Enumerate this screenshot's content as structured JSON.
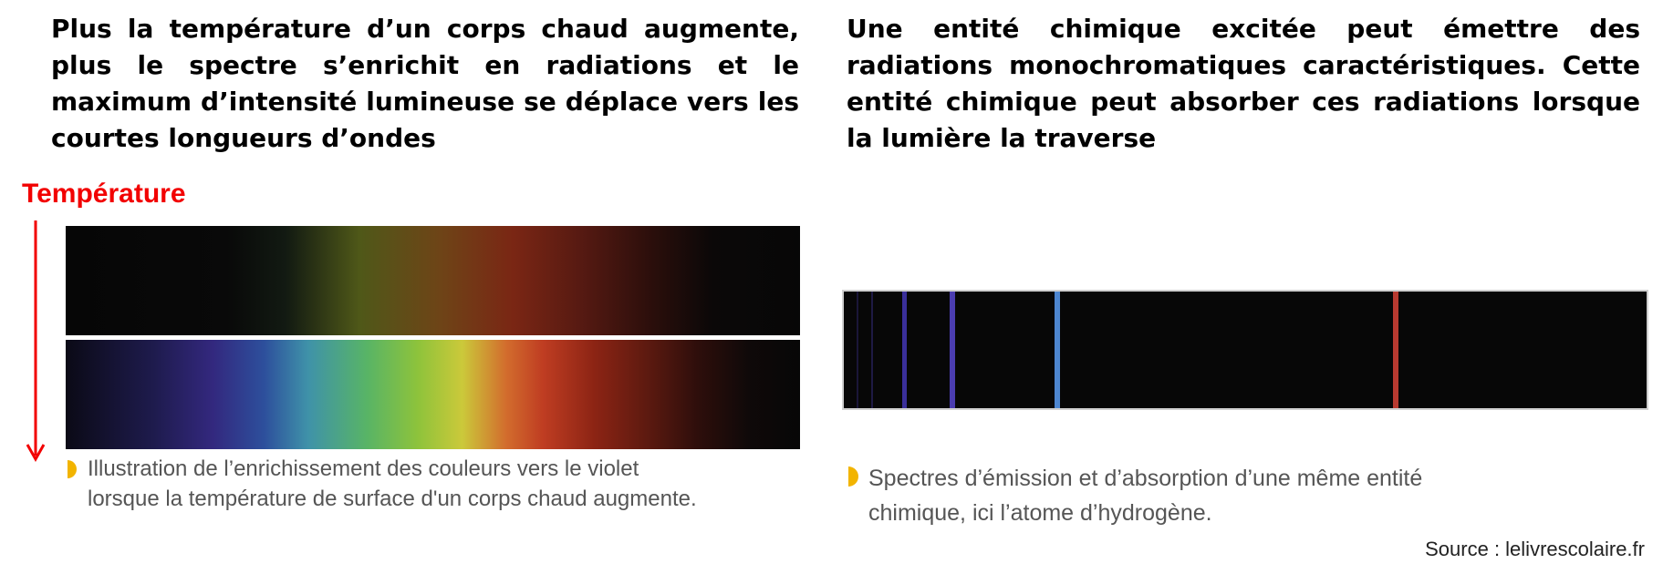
{
  "left_text": "Plus la température d’un corps chaud augmente, plus le spectre s’enrichit en radiations et le maximum d’intensité lumineuse se déplace vers les courtes longueurs d’ondes",
  "right_text": "Une entité chimique excitée peut émettre des radiations monochromatiques caractéristiques. Cette entité chimique peut absorber ces radiations lorsque la lumière la traverse",
  "temperature_label": "Température",
  "caption_left": {
    "line1": "Illustration de l’enrichissement des couleurs vers le violet",
    "line2": "lorsque la température de surface d'un corps chaud augmente."
  },
  "caption_right": {
    "line1": "Spectres d’émission et d’absorption d’une même entité",
    "line2": "chimique, ici l’atome d’hydrogène."
  },
  "source": "Source : lelivrescolaire.fr",
  "colors": {
    "arrow": "#f20000",
    "bullet": "#f2b400",
    "line_violet_1": "#3a2f9a",
    "line_violet_2": "#4b3db0",
    "line_blue": "#4d86d0",
    "line_red": "#b83a30"
  }
}
